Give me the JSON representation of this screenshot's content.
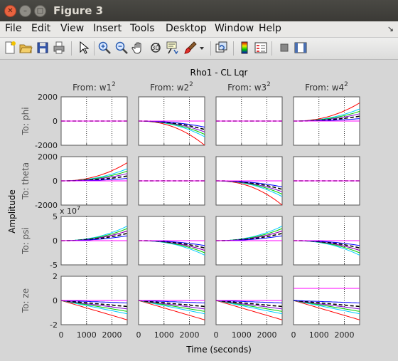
{
  "window": {
    "title": "Figure 3"
  },
  "menubar": {
    "items": [
      "File",
      "Edit",
      "View",
      "Insert",
      "Tools",
      "Desktop",
      "Window",
      "Help"
    ],
    "dock_glyph": "↘"
  },
  "toolbar": {
    "icons": [
      "new-figure-icon",
      "open-file-icon",
      "save-icon",
      "print-icon",
      "pointer-icon",
      "zoom-in-icon",
      "zoom-out-icon",
      "pan-hand-icon",
      "rotate-3d-icon",
      "data-cursor-icon",
      "brush-icon",
      "brush-dropdown-icon",
      "link-plot-icon",
      "insert-colorbar-icon",
      "insert-legend-icon",
      "hide-plot-tools-icon",
      "show-plot-tools-icon"
    ]
  },
  "figure": {
    "title": "Rho1 - CL  Lqr",
    "ylabel": "Amplitude",
    "xlabel": "Time (seconds)",
    "x_tick_labels": [
      "0",
      "1000",
      "2000"
    ],
    "psi_exponent": "x 10",
    "psi_exponent_power": "7",
    "columns": [
      "From: w1",
      "From: w2",
      "From: w3",
      "From: w4"
    ],
    "column_superscript": "2",
    "rows": [
      {
        "label": "To: phi",
        "ticks": [
          "2000",
          "0",
          "-2000"
        ]
      },
      {
        "label": "To: theta",
        "ticks": [
          "2000",
          "0",
          "-2000"
        ]
      },
      {
        "label": "To: psi",
        "ticks": [
          "5",
          "0",
          "-5"
        ]
      },
      {
        "label": "To: ze",
        "ticks": [
          "2",
          "0",
          "-2"
        ]
      }
    ]
  },
  "chart_data": {
    "type": "line",
    "title": "Rho1 - CL  Lqr",
    "xlabel": "Time (seconds)",
    "ylabel": "Amplitude",
    "xlim": [
      0,
      2600
    ],
    "x_ticks": [
      0,
      1000,
      2000
    ],
    "grid": "vertical dotted at x ticks",
    "colors": [
      "#ff0000",
      "#00ccff",
      "#00cc00",
      "#7f00cc",
      "#000000",
      "#0000ff",
      "#ff00ff"
    ],
    "subplots": [
      {
        "row": "To: phi",
        "col": "From: w1",
        "ylim": [
          -2000,
          2000
        ],
        "series_end": [
          0,
          0,
          0,
          0,
          0,
          0,
          0
        ]
      },
      {
        "row": "To: phi",
        "col": "From: w2",
        "ylim": [
          -2000,
          2000
        ],
        "series_end": [
          -2000,
          -1300,
          -1100,
          -900,
          -700,
          -500,
          0
        ]
      },
      {
        "row": "To: phi",
        "col": "From: w3",
        "ylim": [
          -2000,
          2000
        ],
        "series_end": [
          0,
          0,
          0,
          0,
          0,
          0,
          0
        ]
      },
      {
        "row": "To: phi",
        "col": "From: w4",
        "ylim": [
          -2000,
          2000
        ],
        "series_end": [
          1500,
          1000,
          800,
          600,
          400,
          200,
          0
        ]
      },
      {
        "row": "To: theta",
        "col": "From: w1",
        "ylim": [
          -2000,
          2000
        ],
        "series_end": [
          1500,
          1000,
          800,
          600,
          400,
          200,
          0
        ]
      },
      {
        "row": "To: theta",
        "col": "From: w2",
        "ylim": [
          -2000,
          2000
        ],
        "series_end": [
          0,
          0,
          0,
          0,
          0,
          0,
          0
        ]
      },
      {
        "row": "To: theta",
        "col": "From: w3",
        "ylim": [
          -2000,
          2000
        ],
        "series_end": [
          -2000,
          -1300,
          -1100,
          -900,
          -700,
          -500,
          0
        ]
      },
      {
        "row": "To: theta",
        "col": "From: w4",
        "ylim": [
          -2000,
          2000
        ],
        "series_end": [
          0,
          0,
          0,
          0,
          0,
          0,
          0
        ]
      },
      {
        "row": "To: psi",
        "col": "From: w1",
        "ylim": [
          -5,
          5
        ],
        "series_end": [
          2,
          3,
          2.5,
          2,
          1.5,
          1,
          0
        ]
      },
      {
        "row": "To: psi",
        "col": "From: w2",
        "ylim": [
          -5,
          5
        ],
        "series_end": [
          -2,
          -3,
          -2.5,
          -2,
          -1.5,
          -1,
          0
        ]
      },
      {
        "row": "To: psi",
        "col": "From: w3",
        "ylim": [
          -5,
          5
        ],
        "series_end": [
          2,
          3,
          2.5,
          2,
          1.5,
          1,
          0
        ]
      },
      {
        "row": "To: psi",
        "col": "From: w4",
        "ylim": [
          -5,
          5
        ],
        "series_end": [
          -2,
          -3,
          -2.5,
          -2,
          -1.5,
          -1,
          0
        ]
      },
      {
        "row": "To: ze",
        "col": "From: w1",
        "ylim": [
          -2,
          2
        ],
        "series_end": [
          -1.6,
          -1.1,
          -0.9,
          -0.7,
          -0.5,
          -0.2,
          0
        ]
      },
      {
        "row": "To: ze",
        "col": "From: w2",
        "ylim": [
          -2,
          2
        ],
        "series_end": [
          -1.6,
          -1.1,
          -0.9,
          -0.7,
          -0.5,
          -0.2,
          0
        ]
      },
      {
        "row": "To: ze",
        "col": "From: w3",
        "ylim": [
          -2,
          2
        ],
        "series_end": [
          -1.6,
          -1.1,
          -0.9,
          -0.7,
          -0.5,
          -0.2,
          0
        ]
      },
      {
        "row": "To: ze",
        "col": "From: w4",
        "ylim": [
          -2,
          2
        ],
        "series_end": [
          -1.6,
          -1.1,
          -0.9,
          -0.7,
          -0.5,
          -0.2,
          1
        ]
      }
    ]
  }
}
